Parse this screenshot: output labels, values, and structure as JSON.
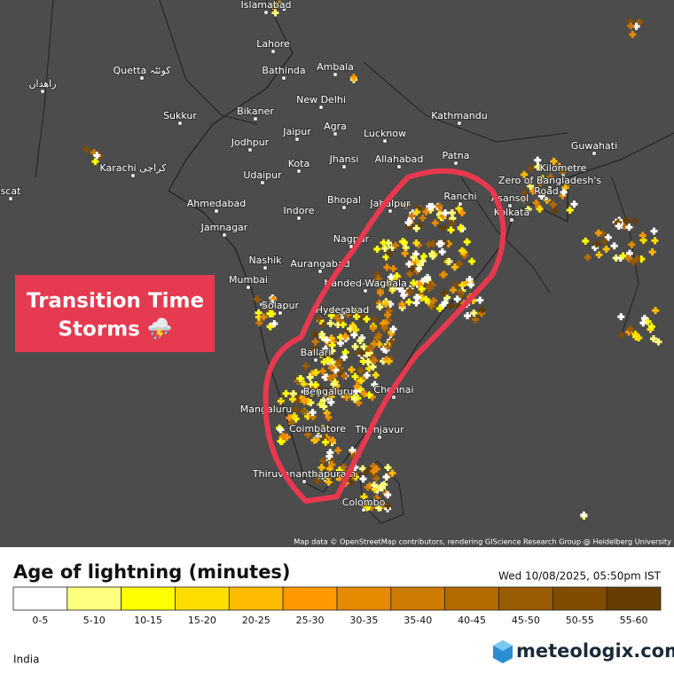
{
  "map": {
    "cities": [
      "Islamabad",
      "Lahore",
      "Quetta کوئٹہ",
      "Bathinda",
      "Ambala",
      "زاهدان",
      "New Delhi",
      "Sukkur",
      "Bikaner",
      "Jaipur",
      "Agra",
      "Lucknow",
      "Kathmandu",
      "Jodhpur",
      "Jhansi",
      "Allahabad",
      "Patna",
      "Guwahati",
      "Karachi كراچى",
      "Kota",
      "Udaipur",
      "Ranchi",
      "Asansol",
      "scat",
      "Ahmedabad",
      "Bhopal",
      "Jabalpur",
      "Indore",
      "Kolkata",
      "Jamnagar",
      "Nagpur",
      "Nashik",
      "Aurangabad",
      "Mumbai",
      "Solapur",
      "Nanded-Waghala",
      "Hyderabad",
      "Ballari",
      "Bengaluru",
      "Chennai",
      "Mangaluru",
      "Coimbatore",
      "Thanjavur",
      "Thiruvananthapuram",
      "Colombo",
      "Kilometre",
      "Zero of Bangladesh's",
      "Road"
    ],
    "callout": [
      "Transition Time",
      "Storms ⛈️"
    ],
    "attribution": "Map data © OpenStreetMap contributors, rendering GIScience Research Group @ Heidelberg University"
  },
  "legend": {
    "title": "Age of lightning (minutes)",
    "timestamp": "Wed 10/08/2025, 05:50pm IST",
    "bins": [
      {
        "label": "0-5",
        "color": "#ffffff"
      },
      {
        "label": "5-10",
        "color": "#ffff80"
      },
      {
        "label": "10-15",
        "color": "#ffff00"
      },
      {
        "label": "15-20",
        "color": "#ffdd00"
      },
      {
        "label": "20-25",
        "color": "#ffbb00"
      },
      {
        "label": "25-30",
        "color": "#ff9900"
      },
      {
        "label": "30-35",
        "color": "#e68a00"
      },
      {
        "label": "35-40",
        "color": "#cc7a00"
      },
      {
        "label": "40-45",
        "color": "#b36b00"
      },
      {
        "label": "45-50",
        "color": "#995c00"
      },
      {
        "label": "50-55",
        "color": "#804d00"
      },
      {
        "label": "55-60",
        "color": "#663d00"
      }
    ]
  },
  "footer": {
    "region": "India",
    "brand": "meteologix.com"
  }
}
